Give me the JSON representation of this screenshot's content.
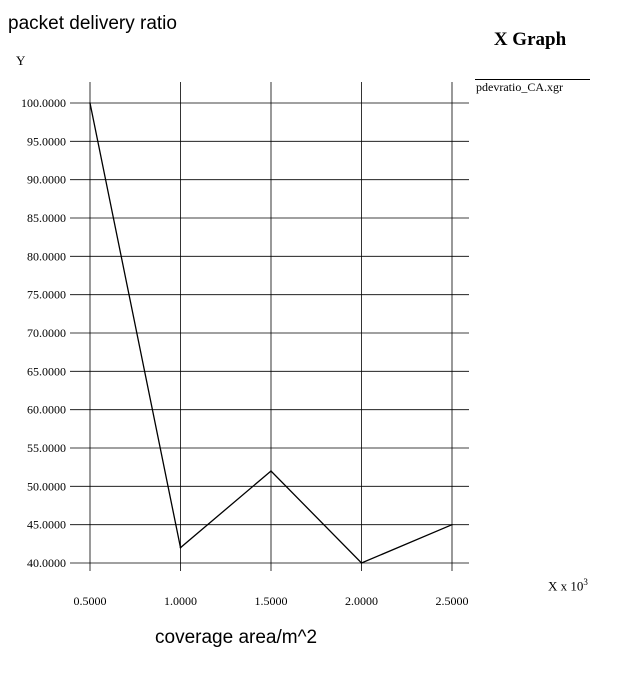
{
  "chart_data": {
    "type": "line",
    "title": "packet delivery ratio",
    "window_title": "X Graph",
    "ylabel": "Y",
    "xlabel": "coverage area/m^2",
    "x_unit": "X x 10",
    "x_unit_exponent": "3",
    "x_ticks": [
      "0.5000",
      "1.0000",
      "1.5000",
      "2.0000",
      "2.5000"
    ],
    "y_ticks": [
      "40.0000",
      "45.0000",
      "50.0000",
      "55.0000",
      "60.0000",
      "65.0000",
      "70.0000",
      "75.0000",
      "80.0000",
      "85.0000",
      "90.0000",
      "95.0000",
      "100.0000"
    ],
    "xlim": [
      0.5,
      2.5
    ],
    "ylim": [
      40,
      100
    ],
    "grid": true,
    "legend_position": "top-right",
    "series": [
      {
        "name": "pdevratio_CA.xgr",
        "color": "#000000",
        "x": [
          0.5,
          1.0,
          1.5,
          2.0,
          2.5
        ],
        "y": [
          100,
          42,
          52,
          40,
          45
        ]
      }
    ]
  }
}
